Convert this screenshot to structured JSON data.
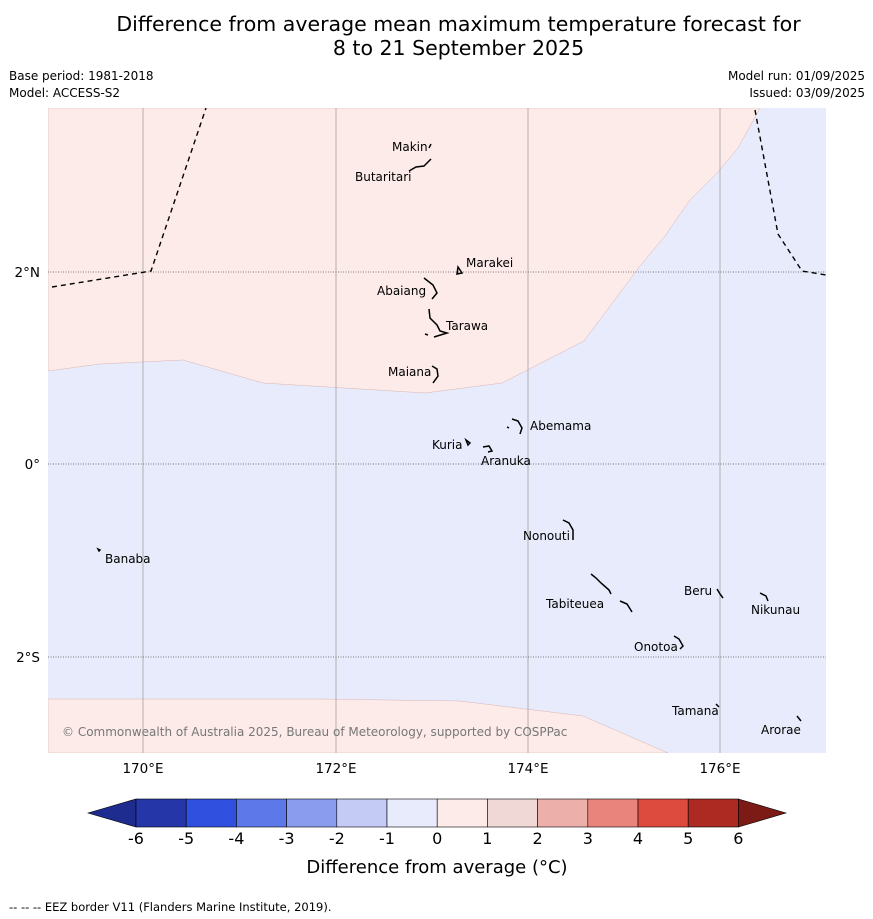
{
  "title": {
    "line1": "Difference from average mean maximum temperature forecast for",
    "line2": "8 to 21 September 2025"
  },
  "meta": {
    "base_period": "Base period: 1981-2018",
    "model": "Model: ACCESS-S2",
    "model_run": "Model run: 01/09/2025",
    "issued": "Issued: 03/09/2025"
  },
  "axes": {
    "lon_labels": [
      "170°E",
      "172°E",
      "174°E",
      "176°E"
    ],
    "lat_labels": [
      "2°N",
      "0°",
      "2°S"
    ]
  },
  "places": {
    "makin": "Makin",
    "butaritari": "Butaritari",
    "marakei": "Marakei",
    "abaiang": "Abaiang",
    "tarawa": "Tarawa",
    "maiana": "Maiana",
    "abemama": "Abemama",
    "kuria": "Kuria",
    "aranuka": "Aranuka",
    "nonouti": "Nonouti",
    "banaba": "Banaba",
    "beru": "Beru",
    "nikunau": "Nikunau",
    "tabiteuea": "Tabiteuea",
    "onotoa": "Onotoa",
    "tamana": "Tamana",
    "arorae": "Arorae"
  },
  "copyright": "© Commonwealth of Australia 2025, Bureau of Meteorology, supported by COSPPac",
  "colorbar": {
    "label": "Difference from average (°C)",
    "ticks": [
      "-6",
      "-5",
      "-4",
      "-3",
      "-2",
      "-1",
      "0",
      "1",
      "2",
      "3",
      "4",
      "5",
      "6"
    ],
    "colors": [
      "#1e2b8f",
      "#2537a8",
      "#3050e0",
      "#5d78e8",
      "#8a9cee",
      "#c4cbf5",
      "#e8ebfb",
      "#fcebe9",
      "#f0d8d6",
      "#edafaa",
      "#e8847c",
      "#dd4a3e",
      "#ad2a22",
      "#7c1b16"
    ]
  },
  "footer": "--  --  -- EEZ border V11 (Flanders Marine Institute, 2019)."
}
